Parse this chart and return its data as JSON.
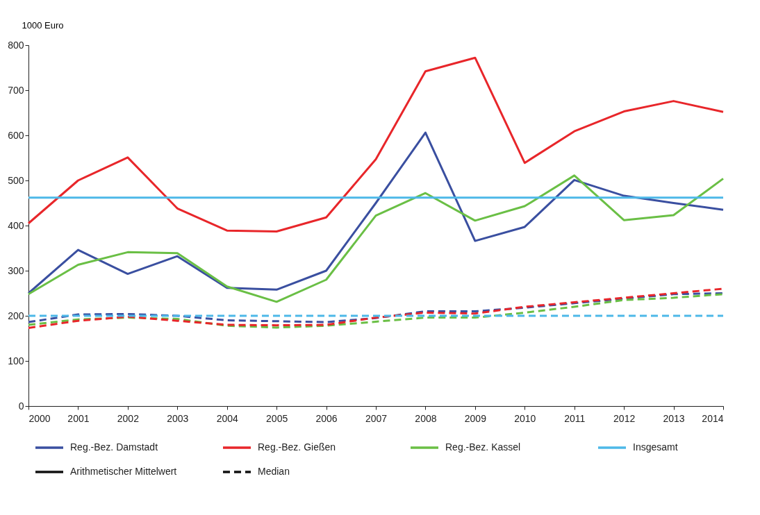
{
  "chart_data": {
    "type": "line",
    "ylabel": "1000 Euro",
    "x": [
      2000,
      2001,
      2002,
      2003,
      2004,
      2005,
      2006,
      2007,
      2008,
      2009,
      2010,
      2011,
      2012,
      2013,
      2014
    ],
    "xlim": [
      2000,
      2014
    ],
    "xticks": [
      2000,
      2001,
      2002,
      2003,
      2004,
      2005,
      2006,
      2007,
      2008,
      2009,
      2010,
      2011,
      2012,
      2013,
      2014
    ],
    "ylim": [
      0,
      800
    ],
    "yticks": [
      0,
      100,
      200,
      300,
      400,
      500,
      600,
      700,
      800
    ],
    "grid": false,
    "legend": "bottom",
    "marker": "none",
    "series": [
      {
        "name": "Reg.-Bez. Damstadt",
        "color": "#3a4fa0",
        "line_style": "solid",
        "values": [
          250,
          346,
          293,
          332,
          262,
          258,
          300,
          450,
          606,
          366,
          397,
          501,
          466,
          450,
          435
        ]
      },
      {
        "name": "Reg.-Bez. Gießen",
        "color": "#e8262a",
        "line_style": "solid",
        "values": [
          405,
          500,
          551,
          438,
          389,
          387,
          418,
          547,
          742,
          772,
          539,
          609,
          653,
          676,
          652
        ]
      },
      {
        "name": "Reg.-Bez. Kassel",
        "color": "#6abf45",
        "line_style": "solid",
        "values": [
          248,
          313,
          341,
          339,
          265,
          231,
          280,
          422,
          472,
          411,
          443,
          511,
          412,
          423,
          504
        ]
      },
      {
        "name": "Insgesamt",
        "color": "#4db8e8",
        "line_style": "solid",
        "values": [
          462,
          462,
          462,
          462,
          462,
          462,
          462,
          462,
          462,
          462,
          462,
          462,
          462,
          462,
          462
        ]
      },
      {
        "color": "#3a4fa0",
        "line_style": "dashed",
        "values": [
          186,
          203,
          204,
          200,
          190,
          188,
          186,
          195,
          210,
          210,
          218,
          228,
          238,
          248,
          250
        ]
      },
      {
        "color": "#6abf45",
        "line_style": "dashed",
        "values": [
          180,
          192,
          196,
          193,
          178,
          174,
          178,
          187,
          196,
          196,
          207,
          220,
          235,
          240,
          248
        ]
      },
      {
        "color": "#e8262a",
        "line_style": "dashed",
        "values": [
          173,
          189,
          198,
          189,
          180,
          179,
          180,
          196,
          207,
          205,
          220,
          230,
          240,
          250,
          260
        ]
      },
      {
        "color": "#4db8e8",
        "line_style": "dashed",
        "values": [
          200,
          200,
          200,
          200,
          200,
          200,
          200,
          200,
          200,
          200,
          200,
          200,
          200,
          200,
          200
        ]
      }
    ],
    "annotations": [
      "Arithmetischer Mittelwert",
      "Median"
    ]
  }
}
